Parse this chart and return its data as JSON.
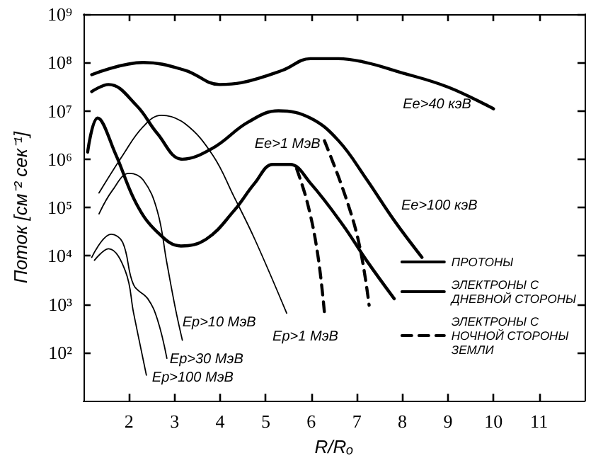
{
  "chart_data": {
    "type": "line",
    "xlabel": "R/Rₒ",
    "ylabel": "Поток [см⁻² сек⁻¹]",
    "log": "y",
    "grid": false,
    "legend": "bottom right",
    "marker": "none",
    "xlim": [
      1,
      12
    ],
    "xticks": [
      2,
      3,
      4,
      5,
      6,
      7,
      8,
      9,
      10,
      11
    ],
    "ylim": [
      10,
      1000000000
    ],
    "yticks": [
      {
        "value": 100,
        "label": "10²"
      },
      {
        "value": 1000,
        "label": "10³"
      },
      {
        "value": 10000,
        "label": "10⁴"
      },
      {
        "value": 100000,
        "label": "10⁵"
      },
      {
        "value": 1000000,
        "label": "10⁶"
      },
      {
        "value": 10000000,
        "label": "10⁷"
      },
      {
        "value": 100000000,
        "label": "10⁸"
      },
      {
        "value": 1000000000,
        "label": "10⁹"
      }
    ],
    "series": [
      {
        "name": "ПРОТОНЫ",
        "color": "#000000",
        "line_style": "solid",
        "x": [
          1.34,
          1.86,
          2.31,
          2.71,
          3.23,
          3.84,
          4.3,
          4.76,
          5.46
        ],
        "values": [
          200000,
          1200000,
          4700000,
          8100000,
          5400000,
          1200000,
          170000,
          22000,
          650
        ]
      },
      {
        "color": "#000000",
        "line_style": "solid",
        "x": [
          1.34,
          1.64,
          2.0,
          2.31,
          2.62,
          2.83,
          3.02,
          3.17
        ],
        "values": [
          74000,
          230000,
          510000,
          370000,
          85000,
          7100,
          790,
          180
        ]
      },
      {
        "color": "#000000",
        "line_style": "solid",
        "x": [
          1.18,
          1.61,
          1.86,
          2.1,
          2.41,
          2.62,
          2.83
        ],
        "values": [
          9300,
          28000,
          19000,
          2500,
          1300,
          490,
          76
        ]
      },
      {
        "color": "#000000",
        "line_style": "solid",
        "x": [
          1.24,
          1.55,
          1.92,
          2.1,
          2.38
        ],
        "values": [
          8100,
          14000,
          4800,
          650,
          34
        ]
      },
      {
        "name": "ЭЛЕКТРОНЫ С\nДНЕВНОЙ СТОРОНЫ",
        "color": "#000000",
        "line_style": "solid",
        "x": [
          1.18,
          2.31,
          3.23,
          3.99,
          4.46,
          5.37,
          5.98,
          6.6,
          7.2,
          7.9,
          9.0,
          10.0
        ],
        "values": [
          56000000,
          100000000,
          69000000,
          35000000,
          38000000,
          69000000,
          120000000,
          120000000,
          100000000,
          65000000,
          31000000,
          11000000
        ]
      },
      {
        "color": "#000000",
        "line_style": "solid",
        "x": [
          1.18,
          1.55,
          2.16,
          2.62,
          3.17,
          3.84,
          4.61,
          5.28,
          5.98,
          6.6,
          7.2,
          7.82,
          8.43
        ],
        "values": [
          25000000,
          35000000,
          13000000,
          3400000,
          1000000,
          1700000,
          5800000,
          10000000,
          7100000,
          2400000,
          400000,
          54000,
          9300
        ]
      },
      {
        "color": "#000000",
        "line_style": "solid",
        "x": [
          1.09,
          1.31,
          1.7,
          2.16,
          2.62,
          3.14,
          3.69,
          4.3,
          4.76,
          5.16,
          5.53,
          5.98,
          6.69,
          7.21,
          7.82
        ],
        "values": [
          1400000,
          7100000,
          1300000,
          120000,
          31000,
          16000,
          22000,
          85000,
          320000,
          780000,
          780000,
          320000,
          44000,
          8100,
          1300
        ]
      },
      {
        "name": "ЭЛЕКТРОНЫ С\nНОЧНОЙ СТОРОНЫ\nЗЕМЛИ",
        "color": "#000000",
        "line_style": "dashed",
        "x": [
          5.68,
          5.92,
          6.14,
          6.29
        ],
        "values": [
          630000,
          120000,
          11000,
          650
        ]
      },
      {
        "color": "#000000",
        "line_style": "dashed",
        "x": [
          6.29,
          6.75,
          7.06,
          7.27
        ],
        "values": [
          2400000,
          170000,
          16000,
          950
        ]
      }
    ],
    "annotations": [
      {
        "text": "Ee>40 кэВ",
        "x": 10.0,
        "y": 11000000
      },
      {
        "text": "Ee>100 кэВ",
        "x": 7.82,
        "y": 54000
      },
      {
        "text": "Ee>1 МэВ",
        "x": 5.16,
        "y": 780000
      },
      {
        "text": "Ep>1 МэВ",
        "x": 5.46,
        "y": 650
      },
      {
        "text": "Ep>10 МэВ",
        "x": 3.17,
        "y": 180
      },
      {
        "text": "Ep>30 МэВ",
        "x": 2.83,
        "y": 76
      },
      {
        "text": "Ep>100 МэВ",
        "x": 2.38,
        "y": 34
      }
    ]
  }
}
